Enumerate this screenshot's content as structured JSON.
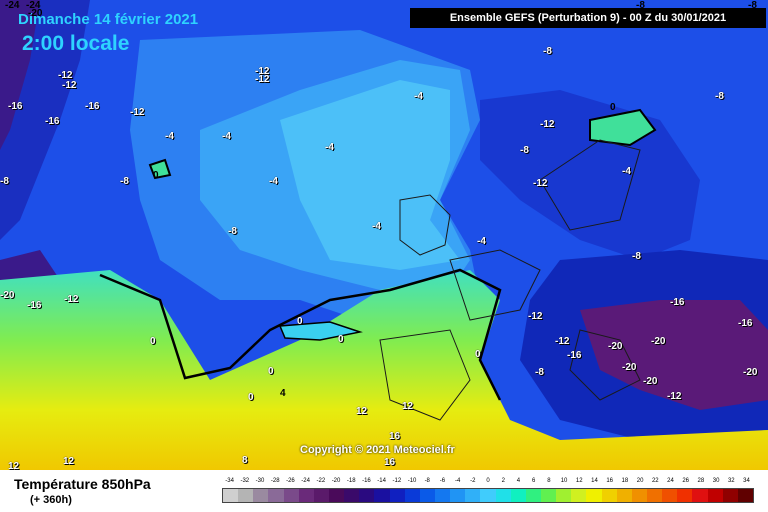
{
  "header": {
    "date": "Dimanche 14 février 2021",
    "time": "2:00 locale",
    "run_info": "Ensemble GEFS  (Perturbation 9)  -  00 Z du 30/01/2021"
  },
  "corner_labels": [
    "-24",
    "-24",
    "-20",
    "-8",
    "-8"
  ],
  "isotherm_labels": [
    {
      "text": "-12"
    },
    {
      "text": "-12"
    },
    {
      "text": "-16"
    },
    {
      "text": "-16"
    },
    {
      "text": "-12"
    },
    {
      "text": "-16"
    },
    {
      "text": "-12"
    },
    {
      "text": "-12"
    },
    {
      "text": "-8"
    },
    {
      "text": "-8"
    },
    {
      "text": "-4"
    },
    {
      "text": "-4"
    },
    {
      "text": "-4"
    },
    {
      "text": "0"
    },
    {
      "text": "-8"
    },
    {
      "text": "-4"
    },
    {
      "text": "-4"
    },
    {
      "text": "-8"
    },
    {
      "text": "-8"
    },
    {
      "text": "-12"
    },
    {
      "text": "0"
    },
    {
      "text": "-4"
    },
    {
      "text": "-8"
    },
    {
      "text": "-12"
    },
    {
      "text": "-4"
    },
    {
      "text": "-4"
    },
    {
      "text": "-8"
    },
    {
      "text": "-20"
    },
    {
      "text": "-16"
    },
    {
      "text": "-12"
    },
    {
      "text": "0"
    },
    {
      "text": "0"
    },
    {
      "text": "0"
    },
    {
      "text": "0"
    },
    {
      "text": "0"
    },
    {
      "text": "4"
    },
    {
      "text": "0"
    },
    {
      "text": "-12"
    },
    {
      "text": "-16"
    },
    {
      "text": "-16"
    },
    {
      "text": "-12"
    },
    {
      "text": "-16"
    },
    {
      "text": "-20"
    },
    {
      "text": "-20"
    },
    {
      "text": "-20"
    },
    {
      "text": "-20"
    },
    {
      "text": "-20"
    },
    {
      "text": "-8"
    },
    {
      "text": "-12"
    },
    {
      "text": "12"
    },
    {
      "text": "12"
    },
    {
      "text": "16"
    },
    {
      "text": "16"
    },
    {
      "text": "8"
    },
    {
      "text": "12"
    },
    {
      "text": "12"
    }
  ],
  "copyright": "Copyright © 2021 Meteociel.fr",
  "footer": {
    "parameter": "Température 850hPa",
    "lead_time": "(+ 360h)"
  },
  "scale": {
    "labels": [
      "-34",
      "-32",
      "-30",
      "-28",
      "-26",
      "-24",
      "-22",
      "-20",
      "-18",
      "-16",
      "-14",
      "-12",
      "-10",
      "-8",
      "-6",
      "-4",
      "-2",
      "0",
      "2",
      "4",
      "6",
      "8",
      "10",
      "12",
      "14",
      "16",
      "18",
      "20",
      "22",
      "24",
      "26",
      "28",
      "30",
      "32",
      "34"
    ],
    "colors": [
      "#cfcfcf",
      "#b4b4b4",
      "#9a8aa0",
      "#8a6a98",
      "#7a4a8a",
      "#6a2a7a",
      "#5a1a6a",
      "#4a0a5a",
      "#3a0a6a",
      "#2a0a80",
      "#1a10a0",
      "#1020c0",
      "#0a3ad8",
      "#0a5ae8",
      "#1478f0",
      "#2094f4",
      "#30b0f8",
      "#40ccfc",
      "#20e0e8",
      "#10f0c0",
      "#30f080",
      "#60f050",
      "#a0f030",
      "#d0f020",
      "#f0f000",
      "#f0d000",
      "#f0b000",
      "#f09000",
      "#f07000",
      "#f05000",
      "#f03000",
      "#e01010",
      "#c00000",
      "#900000",
      "#600000"
    ]
  }
}
